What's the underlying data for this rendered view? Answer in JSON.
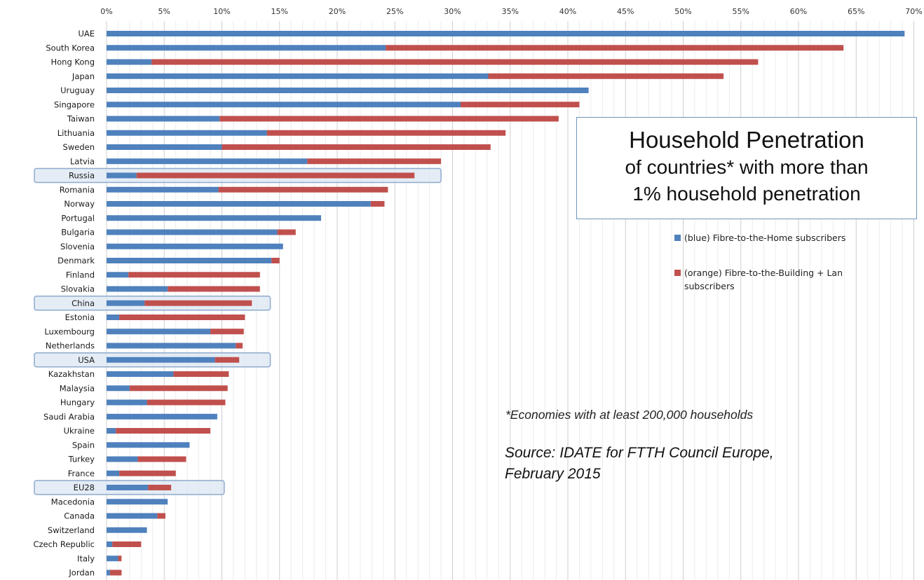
{
  "title": {
    "main": "Household Penetration",
    "line2": "of countries* with more than",
    "line3": "1% household penetration"
  },
  "legend": {
    "blue_label": "(blue) Fibre-to-the-Home subscribers",
    "orange_label_line1": "(orange) Fibre-to-the-Building + Lan",
    "orange_label_line2": "subscribers"
  },
  "footnote": "*Economies with at least 200,000 households",
  "source": {
    "line1": "Source: IDATE for FTTH Council Europe,",
    "line2": "February 2015"
  },
  "colors": {
    "ftth": "#4f81bd",
    "fttb": "#c0504d",
    "highlight_fill": "#dbe5f1",
    "highlight_border": "#8eaacd",
    "grid": "#d9d9d9"
  },
  "chart_data": {
    "type": "bar",
    "orientation": "horizontal",
    "stacked": true,
    "x_tick_labels": [
      "0%",
      "5%",
      "10%",
      "15%",
      "20%",
      "25%",
      "30%",
      "35%",
      "40%",
      "45%",
      "50%",
      "55%",
      "60%",
      "65%",
      "70%"
    ],
    "xlim": [
      0,
      70
    ],
    "categories": [
      "UAE",
      "South Korea",
      "Hong Kong",
      "Japan",
      "Uruguay",
      "Singapore",
      "Taiwan",
      "Lithuania",
      "Sweden",
      "Latvia",
      "Russia",
      "Romania",
      "Norway",
      "Portugal",
      "Bulgaria",
      "Slovenia",
      "Denmark",
      "Finland",
      "Slovakia",
      "China",
      "Estonia",
      "Luxembourg",
      "Netherlands",
      "USA",
      "Kazakhstan",
      "Malaysia",
      "Hungary",
      "Saudi Arabia",
      "Ukraine",
      "Spain",
      "Turkey",
      "France",
      "EU28",
      "Macedonia",
      "Canada",
      "Switzerland",
      "Czech Republic",
      "Italy",
      "Jordan"
    ],
    "highlighted": [
      "Russia",
      "China",
      "USA",
      "EU28"
    ],
    "series": [
      {
        "name": "(blue) Fibre-to-the-Home subscribers",
        "values": [
          69.2,
          24.2,
          3.9,
          33.1,
          41.8,
          30.7,
          9.8,
          13.9,
          10.0,
          17.4,
          2.6,
          9.7,
          22.9,
          18.6,
          14.8,
          15.3,
          14.3,
          1.9,
          5.3,
          3.3,
          1.1,
          9.0,
          11.2,
          9.4,
          5.8,
          2.0,
          3.5,
          9.6,
          0.8,
          7.2,
          2.7,
          1.1,
          3.6,
          5.3,
          4.4,
          3.5,
          0.5,
          1.0,
          0.3
        ]
      },
      {
        "name": "(orange) Fibre-to-the-Building + Lan subscribers",
        "values": [
          0,
          39.7,
          52.6,
          20.4,
          0,
          10.3,
          29.4,
          20.7,
          23.3,
          11.6,
          24.1,
          14.7,
          1.2,
          0,
          1.6,
          0,
          0.7,
          11.4,
          8.0,
          9.3,
          10.9,
          2.9,
          0.6,
          2.1,
          4.8,
          8.5,
          6.8,
          0,
          8.2,
          0,
          4.2,
          4.9,
          2.0,
          0,
          0.7,
          0,
          2.5,
          0.3,
          1.0
        ]
      }
    ]
  }
}
